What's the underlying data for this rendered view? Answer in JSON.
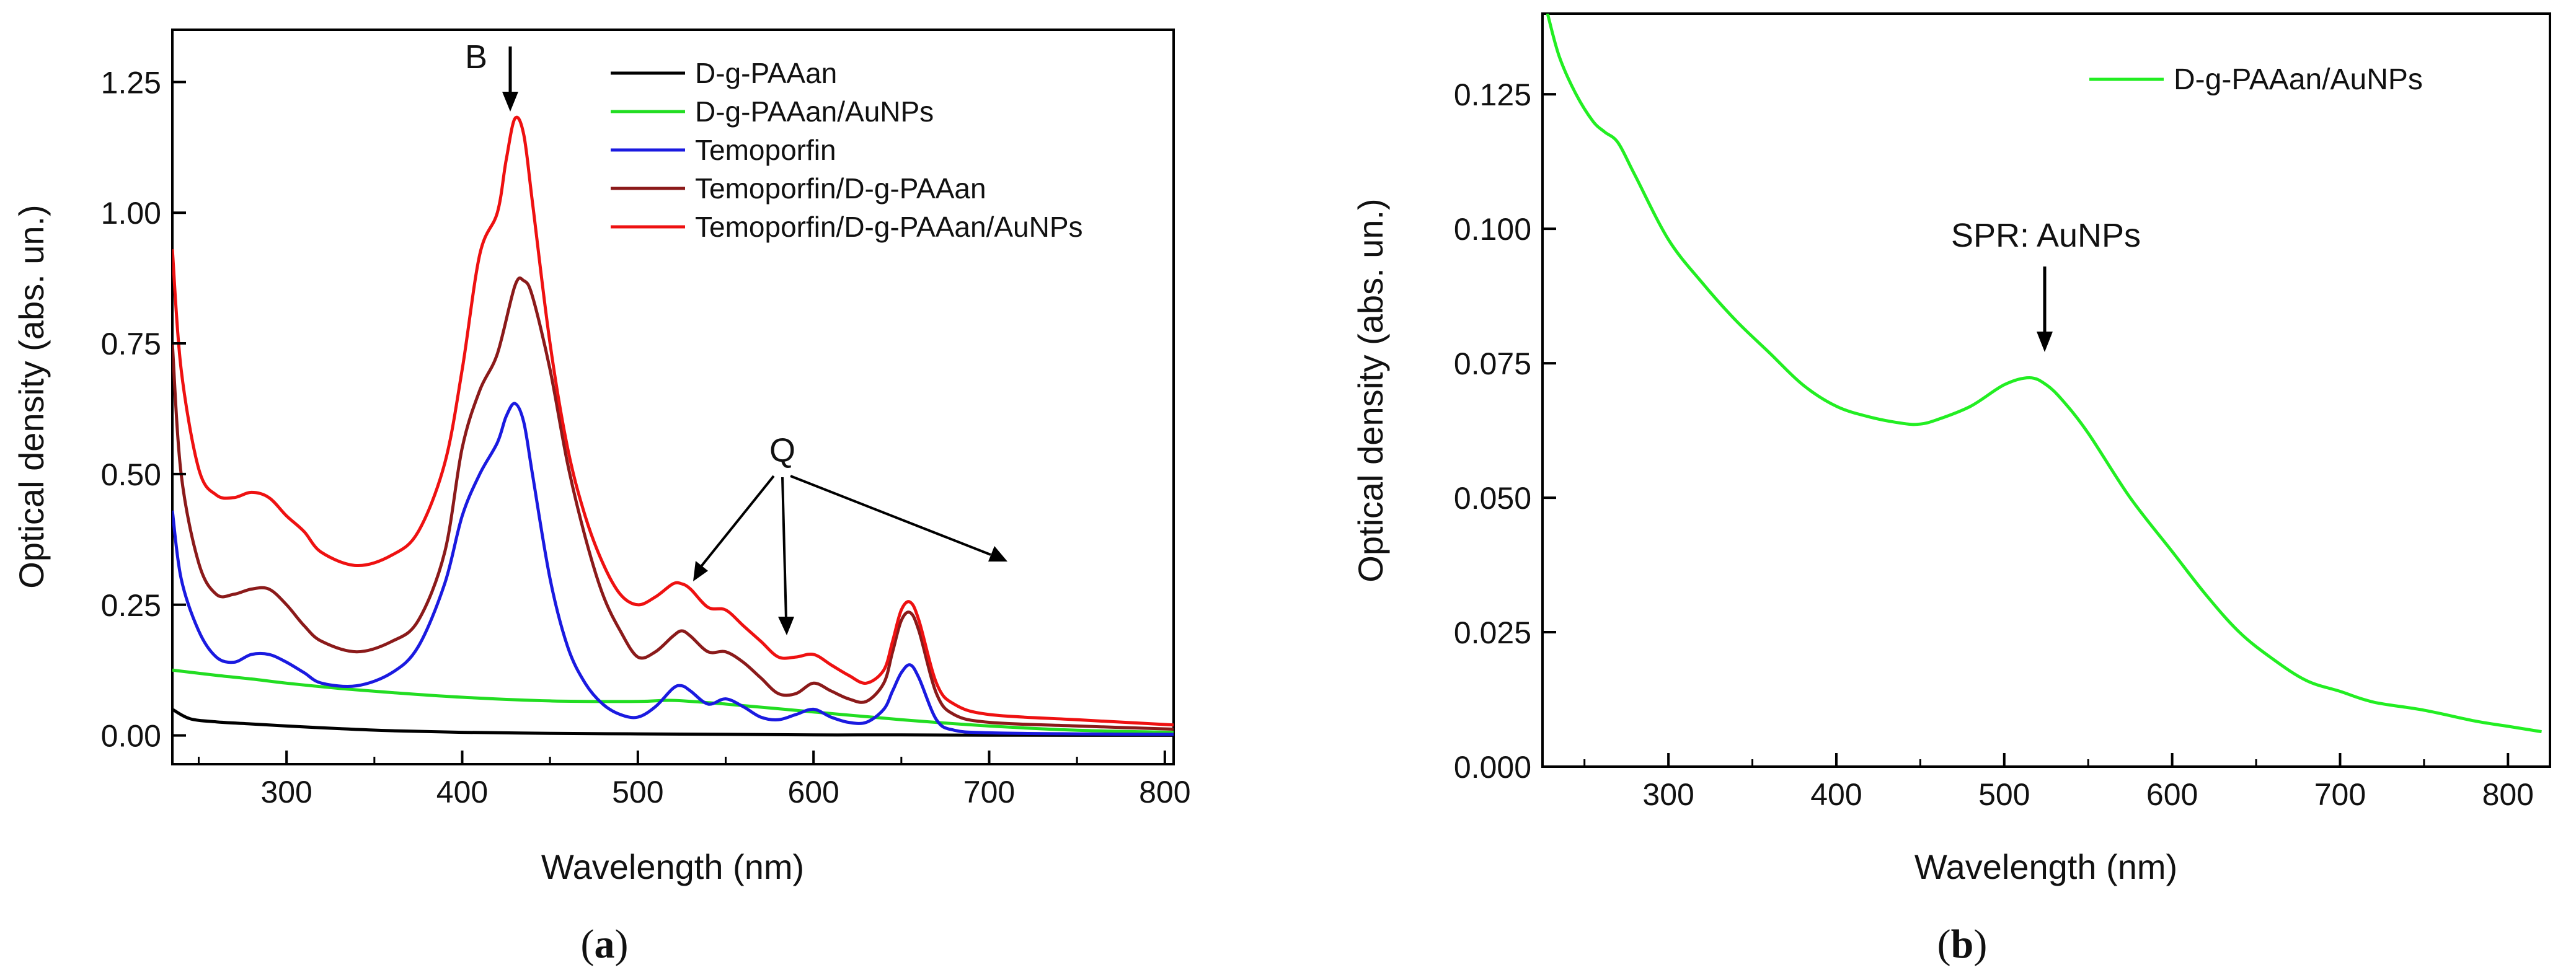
{
  "figure": {
    "panel_labels": [
      "a",
      "b"
    ]
  },
  "chart_data": [
    {
      "id": "a",
      "type": "line",
      "title": "",
      "xlabel": "Wavelength (nm)",
      "ylabel": "Optical density (abs. un.)",
      "xlim": [
        235,
        805
      ],
      "ylim": [
        -0.055,
        1.35
      ],
      "xticks": [
        300,
        400,
        500,
        600,
        700,
        800
      ],
      "yticks": [
        0.0,
        0.25,
        0.5,
        0.75,
        1.0,
        1.25
      ],
      "ytick_labels": [
        "0.00",
        "0.25",
        "0.50",
        "0.75",
        "1.00",
        "1.25"
      ],
      "grid": false,
      "legend_position": "top-right",
      "series": [
        {
          "name": "D-g-PAAan",
          "color": "#000000",
          "x": [
            235,
            245,
            260,
            280,
            300,
            330,
            360,
            400,
            450,
            500,
            550,
            600,
            650,
            700,
            750,
            805
          ],
          "y": [
            0.05,
            0.032,
            0.026,
            0.022,
            0.018,
            0.013,
            0.009,
            0.006,
            0.004,
            0.003,
            0.002,
            0.001,
            0.001,
            0.0005,
            0.0003,
            0.0002
          ]
        },
        {
          "name": "D-g-PAAan/AuNPs",
          "color": "#22dd22",
          "x": [
            235,
            260,
            280,
            300,
            330,
            360,
            400,
            450,
            500,
            520,
            550,
            600,
            650,
            700,
            750,
            805
          ],
          "y": [
            0.125,
            0.115,
            0.108,
            0.1,
            0.09,
            0.082,
            0.073,
            0.066,
            0.065,
            0.067,
            0.06,
            0.045,
            0.03,
            0.018,
            0.01,
            0.006
          ]
        },
        {
          "name": "Temoporfin",
          "color": "#1a1ae0",
          "x": [
            235,
            240,
            250,
            260,
            270,
            280,
            290,
            300,
            310,
            320,
            340,
            360,
            375,
            390,
            400,
            410,
            420,
            425,
            430,
            435,
            440,
            450,
            460,
            470,
            480,
            490,
            500,
            510,
            520,
            525,
            530,
            540,
            550,
            560,
            570,
            580,
            590,
            600,
            610,
            620,
            630,
            640,
            645,
            650,
            655,
            660,
            670,
            680,
            700,
            750,
            805
          ],
          "y": [
            0.43,
            0.3,
            0.2,
            0.15,
            0.14,
            0.155,
            0.155,
            0.14,
            0.12,
            0.1,
            0.095,
            0.12,
            0.17,
            0.29,
            0.42,
            0.5,
            0.56,
            0.61,
            0.635,
            0.6,
            0.5,
            0.3,
            0.17,
            0.1,
            0.06,
            0.04,
            0.035,
            0.055,
            0.09,
            0.095,
            0.085,
            0.06,
            0.07,
            0.055,
            0.035,
            0.03,
            0.04,
            0.05,
            0.035,
            0.025,
            0.025,
            0.05,
            0.085,
            0.12,
            0.135,
            0.11,
            0.03,
            0.01,
            0.005,
            0.003,
            0.002
          ]
        },
        {
          "name": "Temoporfin/D-g-PAAan",
          "color": "#8b1a1a",
          "x": [
            235,
            240,
            250,
            260,
            270,
            280,
            290,
            300,
            310,
            320,
            340,
            360,
            375,
            390,
            400,
            410,
            420,
            430,
            435,
            440,
            450,
            460,
            470,
            480,
            490,
            500,
            510,
            520,
            525,
            530,
            540,
            550,
            560,
            570,
            580,
            590,
            600,
            610,
            620,
            630,
            640,
            645,
            650,
            655,
            660,
            670,
            680,
            700,
            750,
            805
          ],
          "y": [
            0.75,
            0.5,
            0.33,
            0.27,
            0.27,
            0.28,
            0.28,
            0.25,
            0.21,
            0.18,
            0.16,
            0.18,
            0.22,
            0.35,
            0.55,
            0.66,
            0.73,
            0.86,
            0.87,
            0.84,
            0.7,
            0.52,
            0.38,
            0.27,
            0.2,
            0.15,
            0.16,
            0.19,
            0.2,
            0.19,
            0.16,
            0.16,
            0.14,
            0.11,
            0.08,
            0.08,
            0.1,
            0.085,
            0.07,
            0.065,
            0.1,
            0.16,
            0.22,
            0.235,
            0.2,
            0.08,
            0.04,
            0.025,
            0.018,
            0.012
          ]
        },
        {
          "name": "Temoporfin/D-g-PAAan/AuNPs",
          "color": "#ee1111",
          "x": [
            235,
            240,
            250,
            260,
            270,
            280,
            290,
            300,
            310,
            320,
            340,
            360,
            375,
            390,
            400,
            410,
            420,
            425,
            430,
            435,
            440,
            450,
            460,
            470,
            480,
            490,
            500,
            510,
            520,
            525,
            530,
            540,
            550,
            560,
            570,
            580,
            590,
            600,
            610,
            620,
            630,
            640,
            645,
            650,
            655,
            660,
            670,
            680,
            700,
            750,
            805
          ],
          "y": [
            0.93,
            0.7,
            0.51,
            0.46,
            0.455,
            0.465,
            0.455,
            0.42,
            0.39,
            0.35,
            0.325,
            0.345,
            0.39,
            0.52,
            0.7,
            0.92,
            1.0,
            1.1,
            1.18,
            1.15,
            1.02,
            0.75,
            0.55,
            0.42,
            0.33,
            0.27,
            0.25,
            0.265,
            0.29,
            0.29,
            0.28,
            0.245,
            0.24,
            0.21,
            0.18,
            0.15,
            0.15,
            0.155,
            0.135,
            0.115,
            0.1,
            0.125,
            0.18,
            0.24,
            0.255,
            0.22,
            0.1,
            0.06,
            0.04,
            0.03,
            0.02
          ]
        }
      ],
      "annotations": [
        {
          "text": "B",
          "target": [
            430,
            1.18
          ]
        },
        {
          "text": "Q",
          "targets": [
            [
              535,
              0.28
            ],
            [
              588,
              0.17
            ],
            [
              652,
              0.26
            ]
          ]
        }
      ]
    },
    {
      "id": "b",
      "type": "line",
      "title": "",
      "xlabel": "Wavelength (nm)",
      "ylabel": "Optical density (abs. un.)",
      "xlim": [
        225,
        825
      ],
      "ylim": [
        0.0,
        0.14
      ],
      "xticks": [
        300,
        400,
        500,
        600,
        700,
        800
      ],
      "yticks": [
        0.0,
        0.025,
        0.05,
        0.075,
        0.1,
        0.125
      ],
      "ytick_labels": [
        "0.000",
        "0.025",
        "0.050",
        "0.075",
        "0.100",
        "0.125"
      ],
      "grid": false,
      "legend_position": "top-right",
      "series": [
        {
          "name": "D-g-PAAan/AuNPs",
          "color": "#22ee22",
          "x": [
            228,
            235,
            245,
            255,
            262,
            270,
            280,
            300,
            320,
            340,
            360,
            380,
            400,
            420,
            440,
            450,
            460,
            480,
            500,
            515,
            525,
            535,
            550,
            575,
            600,
            620,
            640,
            660,
            680,
            700,
            720,
            750,
            780,
            800,
            820
          ],
          "y": [
            0.14,
            0.132,
            0.125,
            0.12,
            0.118,
            0.116,
            0.11,
            0.098,
            0.09,
            0.083,
            0.077,
            0.071,
            0.067,
            0.065,
            0.0638,
            0.0637,
            0.0645,
            0.067,
            0.071,
            0.0723,
            0.071,
            0.068,
            0.062,
            0.05,
            0.04,
            0.032,
            0.025,
            0.02,
            0.016,
            0.014,
            0.012,
            0.0105,
            0.0085,
            0.0075,
            0.0065
          ]
        }
      ],
      "annotations": [
        {
          "text": "SPR: AuNPs",
          "target": [
            518,
            0.0725
          ]
        }
      ]
    }
  ]
}
